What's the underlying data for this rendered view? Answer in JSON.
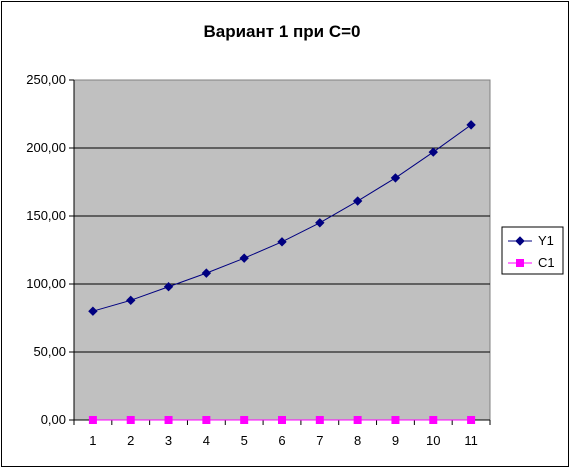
{
  "chart_data": {
    "type": "line",
    "title": "Вариант 1 при С=0",
    "xlabel": "",
    "ylabel": "",
    "categories": [
      "1",
      "2",
      "3",
      "4",
      "5",
      "6",
      "7",
      "8",
      "9",
      "10",
      "11"
    ],
    "ylim": [
      0,
      250
    ],
    "y_ticks": [
      "0,00",
      "50,00",
      "100,00",
      "150,00",
      "200,00",
      "250,00"
    ],
    "grid": true,
    "legend_position": "right",
    "plot_background": "#c0c0c0",
    "series": [
      {
        "name": "Y1",
        "color": "#000080",
        "marker": "diamond",
        "values": [
          80,
          88,
          98,
          108,
          119,
          131,
          145,
          161,
          178,
          197,
          217
        ]
      },
      {
        "name": "C1",
        "color": "#ff00ff",
        "marker": "square",
        "values": [
          0,
          0,
          0,
          0,
          0,
          0,
          0,
          0,
          0,
          0,
          0
        ]
      }
    ]
  }
}
